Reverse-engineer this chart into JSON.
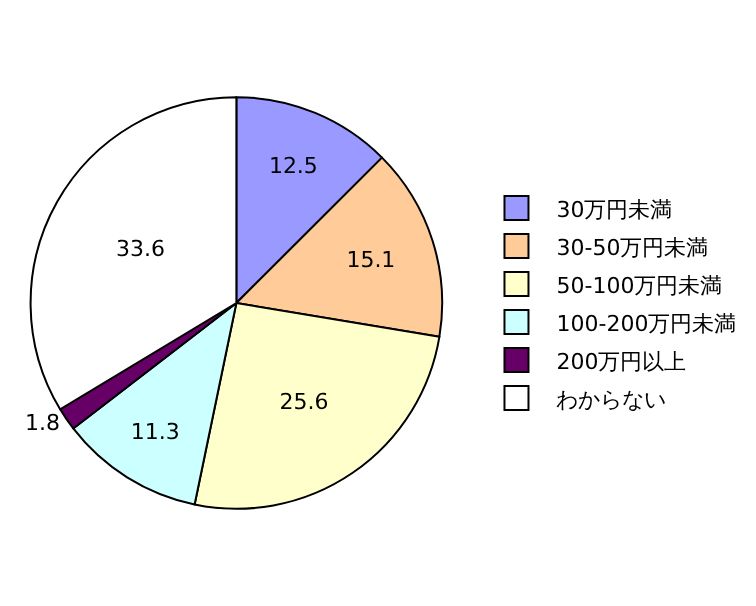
{
  "chart_data": {
    "type": "pie",
    "categories": [
      "30万円未満",
      "30-50万円未満",
      "50-100万円未満",
      "100-200万円未満",
      "200万円以上",
      "わからない"
    ],
    "values": [
      12.5,
      15.1,
      25.6,
      11.3,
      1.8,
      33.6
    ],
    "colors": [
      "#9999ff",
      "#ffcc99",
      "#ffffcc",
      "#ccffff",
      "#660066",
      "#ffffff"
    ],
    "data_labels": true,
    "legend": "right"
  }
}
